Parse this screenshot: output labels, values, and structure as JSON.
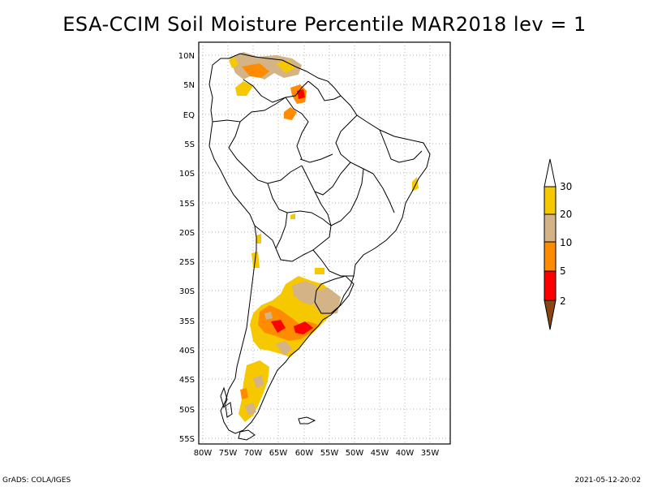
{
  "title": "ESA-CCIM Soil Moisture Percentile MAR2018 lev = 1",
  "footer": {
    "left": "GrADS: COLA/IGES",
    "right": "2021-05-12-20:02"
  },
  "map": {
    "lat_labels": [
      "10N",
      "5N",
      "EQ",
      "5S",
      "10S",
      "15S",
      "20S",
      "25S",
      "30S",
      "35S",
      "40S",
      "45S",
      "50S",
      "55S"
    ],
    "lon_labels": [
      "80W",
      "75W",
      "70W",
      "65W",
      "60W",
      "55W",
      "50W",
      "45W",
      "40W",
      "35W"
    ],
    "region": "South America",
    "grid": "dotted"
  },
  "legend": {
    "levels": [
      "30",
      "20",
      "10",
      "5",
      "2"
    ],
    "colors": {
      "above_30": "#ffffff",
      "20_30": "#f5c800",
      "10_20": "#d4b487",
      "5_10": "#ff8c00",
      "2_5": "#ff0000",
      "below_2": "#8b4513"
    }
  }
}
